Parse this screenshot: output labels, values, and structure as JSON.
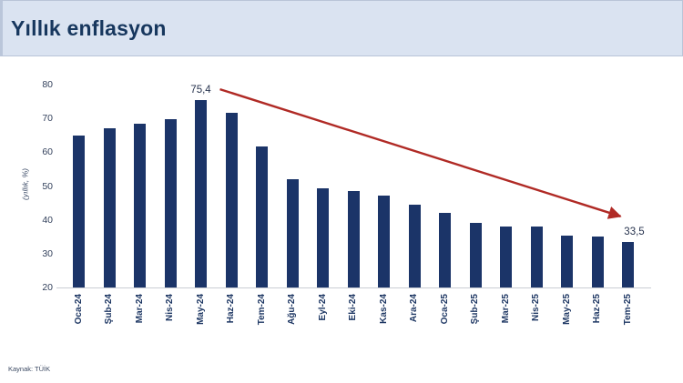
{
  "header": {
    "title": "Yıllık enflasyon"
  },
  "source": "Kaynak: TÜİK",
  "chart_data": {
    "type": "bar",
    "title": "Yıllık enflasyon",
    "xlabel": "",
    "ylabel": "(yıllık, %)",
    "ylim": [
      20,
      80
    ],
    "yticks": [
      80,
      70,
      60,
      50,
      40,
      30,
      20
    ],
    "grid": false,
    "legend": "none",
    "categories": [
      "Oca-24",
      "Şub-24",
      "Mar-24",
      "Nis-24",
      "May-24",
      "Haz-24",
      "Tem-24",
      "Ağu-24",
      "Eyl-24",
      "Eki-24",
      "Kas-24",
      "Ara-24",
      "Oca-25",
      "Şub-25",
      "Mar-25",
      "Nis-25",
      "May-25",
      "Haz-25",
      "Tem-25"
    ],
    "values": [
      64.9,
      67.1,
      68.5,
      69.8,
      75.4,
      71.6,
      61.8,
      52.0,
      49.4,
      48.6,
      47.1,
      44.4,
      42.1,
      39.1,
      38.1,
      37.9,
      35.4,
      35.1,
      33.5
    ],
    "bar_color": "#1b3468",
    "annotations": [
      {
        "text": "75,4",
        "category": "May-24",
        "dx": 0
      },
      {
        "text": "33,5",
        "category": "Tem-25",
        "dx": 7
      }
    ],
    "arrow": {
      "from_category": "May-24",
      "to_category": "Tem-25",
      "color": "#b02a25"
    }
  }
}
